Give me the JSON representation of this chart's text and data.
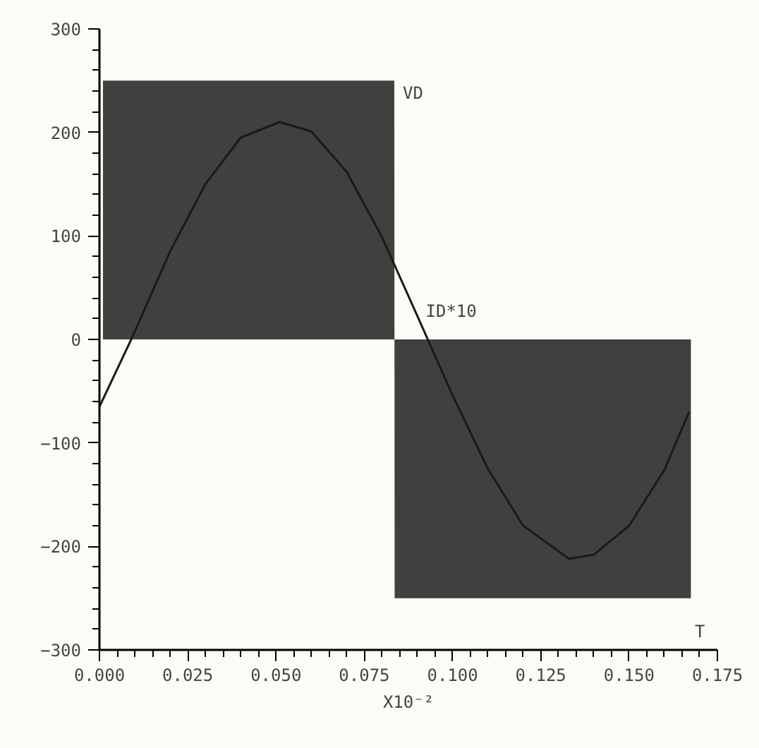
{
  "chart_data": {
    "type": "line",
    "xlabel": "T",
    "annotations": [
      "X10⁻²"
    ],
    "series": [
      {
        "name": "VD",
        "type": "area",
        "color": "#2b2b2b",
        "x": [
          0.001,
          0.0835,
          0.0836,
          0.1675
        ],
        "values": [
          250,
          250,
          -250,
          -250
        ]
      },
      {
        "name": "ID*10",
        "color": "#1a1a1a",
        "x": [
          0,
          0.009,
          0.02,
          0.03,
          0.04,
          0.051,
          0.06,
          0.07,
          0.08,
          0.09,
          0.1,
          0.11,
          0.12,
          0.133,
          0.14,
          0.15,
          0.16,
          0.167
        ],
        "values": [
          -65,
          0,
          85,
          150,
          195,
          210,
          201,
          162,
          99,
          23,
          -54,
          -125,
          -180,
          -212,
          -208,
          -180,
          -126,
          -70
        ]
      }
    ],
    "xlim": [
      0,
      0.175
    ],
    "ylim": [
      -300,
      300
    ],
    "xticks": [
      {
        "value": 0,
        "label": "0.000"
      },
      0.025,
      {
        "value": 0.05,
        "label": "0.050"
      },
      0.075,
      {
        "value": 0.1,
        "label": "0.100"
      },
      0.125,
      {
        "value": 0.15,
        "label": "0.150"
      },
      0.175
    ],
    "yticks": [
      -300,
      -200,
      -100,
      0,
      100,
      200,
      300
    ],
    "grid": false,
    "marker": "none",
    "line_style": "solid"
  }
}
